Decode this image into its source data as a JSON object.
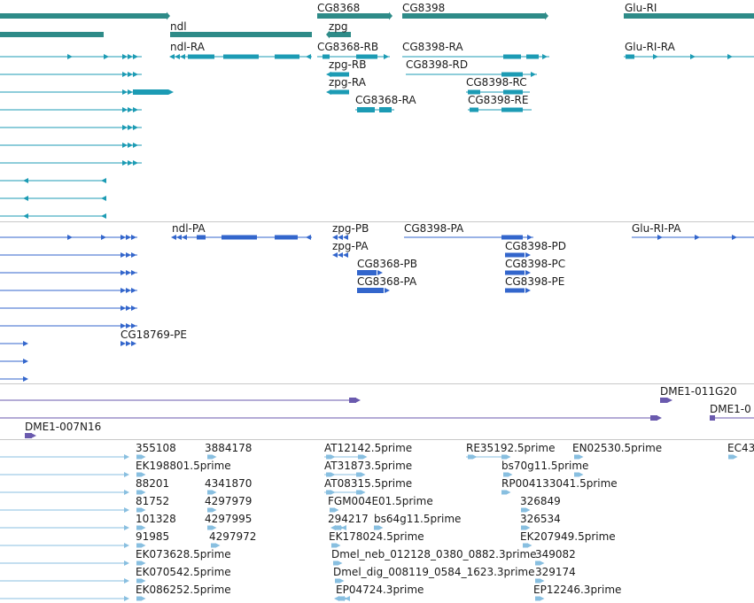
{
  "colors": {
    "gene": "#2e8b88",
    "transcript": "#1c9bb4",
    "protein": "#3366cc",
    "bac": "#6a5aae",
    "est": "#88bfe0",
    "separator": "#c8c8c8",
    "label": "#1a1a1a"
  },
  "gene_track": {
    "labels": [
      "ndl",
      "CG8368",
      "zpg",
      "CG8398",
      "Glu-RI"
    ]
  },
  "transcript_track": {
    "labels": [
      "ndl-RA",
      "CG8368-RB",
      "zpg-RB",
      "zpg-RA",
      "CG8368-RA",
      "CG8398-RA",
      "CG8398-RD",
      "CG8398-RC",
      "CG8398-RE",
      "Glu-RI-RA"
    ]
  },
  "protein_track": {
    "labels": [
      "ndl-PA",
      "zpg-PB",
      "zpg-PA",
      "CG8368-PB",
      "CG8368-PA",
      "CG8398-PA",
      "CG8398-PD",
      "CG8398-PC",
      "CG8398-PE",
      "Glu-RI-PA",
      "CG18769-PE"
    ]
  },
  "bac_track": {
    "labels": [
      "DME1-011G20",
      "DME1-0",
      "DME1-007N16"
    ]
  },
  "est_track": {
    "labels": [
      "355108",
      "3884178",
      "EK198801.5prime",
      "88201",
      "4341870",
      "81752",
      "4297979",
      "101328",
      "4297995",
      "91985",
      "4297972",
      "EK073628.5prime",
      "EK070542.5prime",
      "EK086252.5prime",
      "AT12142.5prime",
      "AT31873.5prime",
      "AT08315.5prime",
      "FGM004E01.5prime",
      "294217",
      "bs64g11.5prime",
      "EK178024.5prime",
      "Dmel_neb_012128_0380_0882.3prime",
      "Dmel_dig_008119_0584_1623.3prime",
      "EP04724.3prime",
      "RE35192.5prime",
      "EN02530.5prime",
      "EC43",
      "bs70g11.5prime",
      "RP004133041.5prime",
      "326849",
      "326534",
      "EK207949.5prime",
      "349082",
      "329174",
      "EP12246.3prime"
    ]
  }
}
